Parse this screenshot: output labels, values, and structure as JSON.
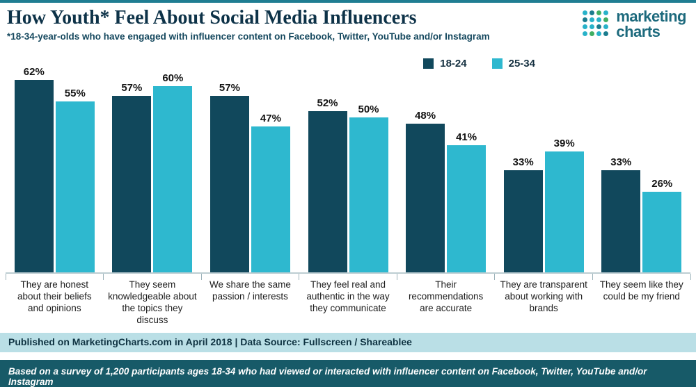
{
  "header": {
    "title": "How Youth* Feel About Social Media Influencers",
    "subtitle": "*18-34-year-olds who have engaged with influencer content on Facebook, Twitter, YouTube and/or Instagram"
  },
  "logo": {
    "line1": "marketing",
    "line2": "charts",
    "dot_colors": [
      "#28b2c9",
      "#1b7c8e",
      "#3fae63",
      "#28b2c9",
      "#1b7c8e",
      "#28b2c9",
      "#28b2c9",
      "#3fae63",
      "#28b2c9",
      "#28b2c9",
      "#1b7c8e",
      "#28b2c9",
      "#28b2c9",
      "#3fae63",
      "#28b2c9",
      "#1b7c8e"
    ]
  },
  "chart_data": {
    "type": "bar",
    "title": "How Youth* Feel About Social Media Influencers",
    "categories": [
      "They are honest about their beliefs and opinions",
      "They seem knowledgeable about the topics they discuss",
      "We share the same passion / interests",
      "They feel real and authentic in the way they communicate",
      "Their recommendations are accurate",
      "They are transparent about working with brands",
      "They seem like they could be my friend"
    ],
    "series": [
      {
        "name": "18-24",
        "color": "#11485c",
        "values": [
          62,
          57,
          57,
          52,
          48,
          33,
          33
        ]
      },
      {
        "name": "25-34",
        "color": "#2eb8cf",
        "values": [
          55,
          60,
          47,
          50,
          41,
          39,
          26
        ]
      }
    ],
    "value_suffix": "%",
    "ylim": [
      0,
      70
    ],
    "grid": false,
    "legend_position": "top-right",
    "xlabel": "",
    "ylabel": ""
  },
  "footer": {
    "published": "Published on MarketingCharts.com in April 2018 | Data Source: Fullscreen / Shareablee",
    "note": "Based on a survey of 1,200 participants ages 18-34 who had viewed or interacted with influencer content on Facebook, Twitter, YouTube and/or Instagram"
  },
  "colors": {
    "bar_dark": "#11485c",
    "bar_light": "#2eb8cf",
    "accent": "#1f7d92",
    "footer_light_bg": "#badfe6",
    "footer_dark_bg": "#175a68"
  }
}
